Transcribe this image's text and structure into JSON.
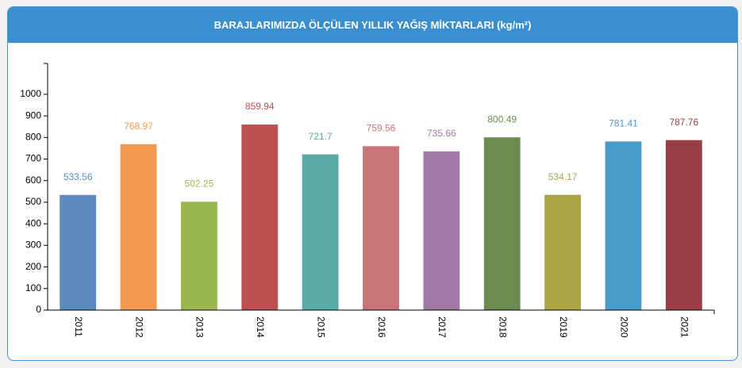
{
  "chart_data": {
    "type": "bar",
    "title": "BARAJLARIMIZDA ÖLÇÜLEN YILLIK YAĞIŞ MİKTARLARI (kg/m²)",
    "categories": [
      "2011",
      "2012",
      "2013",
      "2014",
      "2015",
      "2016",
      "2017",
      "2018",
      "2019",
      "2020",
      "2021"
    ],
    "values": [
      533.56,
      768.97,
      502.25,
      859.94,
      721.7,
      759.56,
      735.66,
      800.49,
      534.17,
      781.41,
      787.76
    ],
    "colors": [
      "#5b8bbf",
      "#f0994f",
      "#9bb84f",
      "#be5054",
      "#58aaa5",
      "#c87575",
      "#a079a4",
      "#6c8b50",
      "#aba546",
      "#4a9bc5",
      "#9a3e46"
    ],
    "ylim": [
      0,
      1143
    ],
    "yticks": [
      0,
      100,
      200,
      300,
      400,
      500,
      600,
      700,
      800,
      900,
      1000
    ]
  }
}
